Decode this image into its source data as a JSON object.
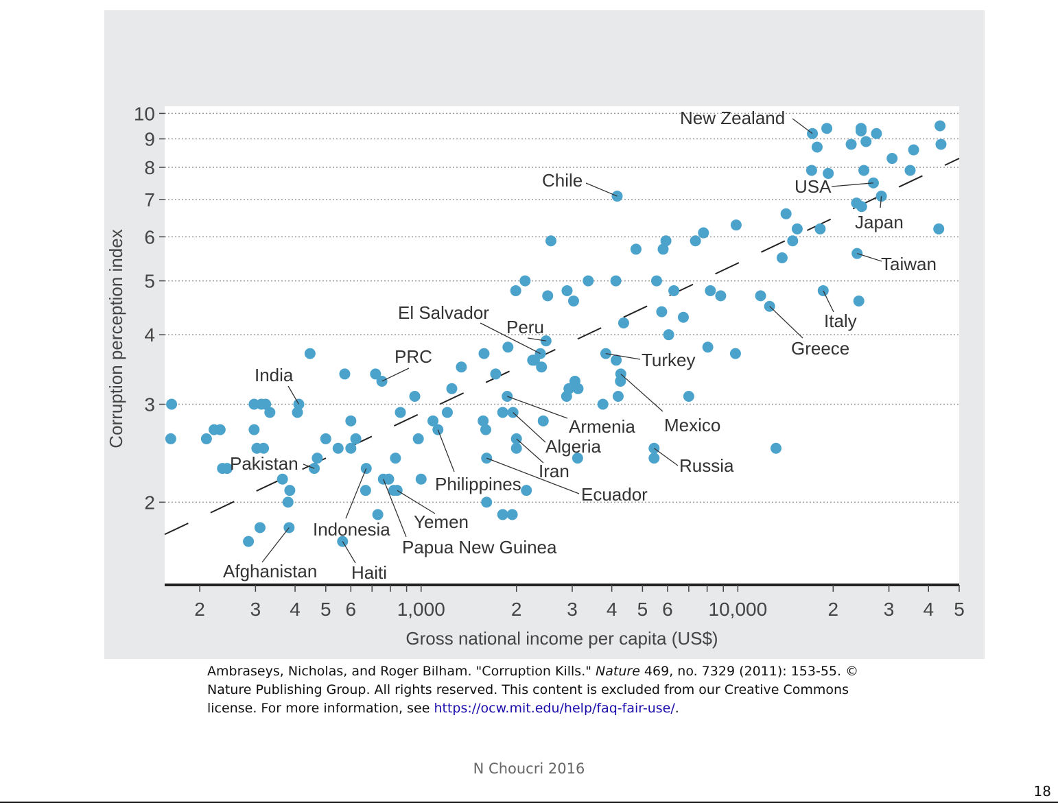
{
  "colors": {
    "point": "#4ba3cc",
    "panel": "#e8e9ea",
    "text": "#333333",
    "grid": "#999999"
  },
  "chart_data": {
    "type": "scatter",
    "xlabel": "Gross national income per capita (US$)",
    "ylabel": "Corruption perception index",
    "x_scale": "log",
    "y_scale": "log",
    "xlim": [
      155,
      50000
    ],
    "ylim": [
      1.42,
      10.3
    ],
    "grid": "horizontal dotted",
    "x_ticks": [
      {
        "v": 200,
        "label": "2"
      },
      {
        "v": 300,
        "label": "3"
      },
      {
        "v": 400,
        "label": "4"
      },
      {
        "v": 500,
        "label": "5"
      },
      {
        "v": 600,
        "label": "6"
      },
      {
        "v": 1000,
        "label": "1,000"
      },
      {
        "v": 2000,
        "label": "2"
      },
      {
        "v": 3000,
        "label": "3"
      },
      {
        "v": 4000,
        "label": "4"
      },
      {
        "v": 5000,
        "label": "5"
      },
      {
        "v": 6000,
        "label": "6"
      },
      {
        "v": 10000,
        "label": "10,000"
      },
      {
        "v": 20000,
        "label": "2"
      },
      {
        "v": 30000,
        "label": "3"
      },
      {
        "v": 40000,
        "label": "4"
      },
      {
        "v": 50000,
        "label": "5"
      }
    ],
    "y_ticks": [
      {
        "v": 2,
        "label": "2"
      },
      {
        "v": 3,
        "label": "3"
      },
      {
        "v": 4,
        "label": "4"
      },
      {
        "v": 5,
        "label": "5"
      },
      {
        "v": 6,
        "label": "6"
      },
      {
        "v": 7,
        "label": "7"
      },
      {
        "v": 8,
        "label": "8"
      },
      {
        "v": 9,
        "label": "9"
      },
      {
        "v": 10,
        "label": "10"
      }
    ],
    "trend_line": {
      "style": "dashed",
      "from": [
        155,
        1.75
      ],
      "to": [
        50000,
        8.3
      ]
    },
    "points": [
      [
        162,
        2.6
      ],
      [
        163,
        3.0
      ],
      [
        210,
        2.6
      ],
      [
        222,
        2.7
      ],
      [
        232,
        2.7
      ],
      [
        236,
        2.3
      ],
      [
        244,
        2.3
      ],
      [
        285,
        1.7
      ],
      [
        297,
        2.7
      ],
      [
        297,
        3.0
      ],
      [
        303,
        2.5
      ],
      [
        310,
        1.8
      ],
      [
        313,
        3.0
      ],
      [
        318,
        2.5
      ],
      [
        323,
        3.0
      ],
      [
        333,
        2.9
      ],
      [
        365,
        2.2
      ],
      [
        380,
        2.0
      ],
      [
        383,
        1.8
      ],
      [
        385,
        2.1
      ],
      [
        407,
        2.9
      ],
      [
        411,
        3.0
      ],
      [
        446,
        3.7
      ],
      [
        460,
        2.3
      ],
      [
        470,
        2.4
      ],
      [
        500,
        2.6
      ],
      [
        547,
        2.5
      ],
      [
        565,
        1.7
      ],
      [
        574,
        3.4
      ],
      [
        600,
        2.8
      ],
      [
        600,
        2.5
      ],
      [
        622,
        2.6
      ],
      [
        668,
        2.1
      ],
      [
        671,
        2.3
      ],
      [
        718,
        3.4
      ],
      [
        730,
        1.9
      ],
      [
        752,
        3.3
      ],
      [
        760,
        2.2
      ],
      [
        790,
        2.2
      ],
      [
        820,
        2.1
      ],
      [
        830,
        2.4
      ],
      [
        840,
        2.1
      ],
      [
        860,
        2.9
      ],
      [
        955,
        3.1
      ],
      [
        980,
        2.6
      ],
      [
        1000,
        2.2
      ],
      [
        1090,
        2.8
      ],
      [
        1130,
        2.7
      ],
      [
        1210,
        2.9
      ],
      [
        1250,
        3.2
      ],
      [
        1340,
        3.5
      ],
      [
        1570,
        2.8
      ],
      [
        1580,
        3.7
      ],
      [
        1600,
        2.7
      ],
      [
        1610,
        2.0
      ],
      [
        1610,
        2.4
      ],
      [
        1720,
        3.4
      ],
      [
        1810,
        1.9
      ],
      [
        1810,
        2.9
      ],
      [
        1870,
        3.1
      ],
      [
        1880,
        3.8
      ],
      [
        1940,
        1.9
      ],
      [
        1950,
        2.9
      ],
      [
        1990,
        4.8
      ],
      [
        2000,
        2.5
      ],
      [
        2000,
        2.6
      ],
      [
        2130,
        5.0
      ],
      [
        2150,
        2.1
      ],
      [
        2250,
        3.6
      ],
      [
        2280,
        3.6
      ],
      [
        2380,
        3.7
      ],
      [
        2400,
        3.5
      ],
      [
        2430,
        2.8
      ],
      [
        2480,
        3.9
      ],
      [
        2510,
        4.7
      ],
      [
        2570,
        5.9
      ],
      [
        2880,
        3.1
      ],
      [
        2890,
        4.8
      ],
      [
        2930,
        3.2
      ],
      [
        3030,
        4.6
      ],
      [
        3060,
        3.3
      ],
      [
        3120,
        2.4
      ],
      [
        3130,
        3.2
      ],
      [
        3370,
        5.0
      ],
      [
        3750,
        3.0
      ],
      [
        3830,
        3.7
      ],
      [
        4120,
        5.0
      ],
      [
        4130,
        3.6
      ],
      [
        4160,
        7.1
      ],
      [
        4190,
        3.1
      ],
      [
        4260,
        3.3
      ],
      [
        4270,
        3.4
      ],
      [
        4360,
        4.2
      ],
      [
        4770,
        5.7
      ],
      [
        5440,
        2.5
      ],
      [
        5440,
        2.4
      ],
      [
        5540,
        5.0
      ],
      [
        5750,
        4.4
      ],
      [
        5810,
        5.7
      ],
      [
        5930,
        5.9
      ],
      [
        6050,
        4.0
      ],
      [
        6280,
        4.8
      ],
      [
        6730,
        4.3
      ],
      [
        7000,
        3.1
      ],
      [
        7350,
        5.9
      ],
      [
        7790,
        6.1
      ],
      [
        8040,
        3.8
      ],
      [
        8190,
        4.8
      ],
      [
        8830,
        4.7
      ],
      [
        9830,
        3.7
      ],
      [
        9880,
        6.3
      ],
      [
        11800,
        4.7
      ],
      [
        12600,
        4.5
      ],
      [
        13200,
        2.5
      ],
      [
        13800,
        5.5
      ],
      [
        14200,
        6.6
      ],
      [
        14900,
        5.9
      ],
      [
        15400,
        6.2
      ],
      [
        17100,
        7.9
      ],
      [
        17200,
        9.2
      ],
      [
        17800,
        8.7
      ],
      [
        18200,
        6.2
      ],
      [
        18600,
        4.8
      ],
      [
        19100,
        9.4
      ],
      [
        19300,
        7.8
      ],
      [
        22800,
        8.8
      ],
      [
        23700,
        6.9
      ],
      [
        23800,
        5.6
      ],
      [
        24100,
        4.6
      ],
      [
        24500,
        9.3
      ],
      [
        24500,
        9.4
      ],
      [
        24600,
        6.8
      ],
      [
        25000,
        7.9
      ],
      [
        25400,
        8.9
      ],
      [
        26800,
        7.5
      ],
      [
        27400,
        9.2
      ],
      [
        28400,
        7.1
      ],
      [
        30700,
        8.3
      ],
      [
        35000,
        7.9
      ],
      [
        35900,
        8.6
      ],
      [
        43100,
        6.2
      ],
      [
        43500,
        9.5
      ],
      [
        43800,
        8.8
      ]
    ],
    "annotations": [
      {
        "text": "New Zealand",
        "at": [
          17200,
          9.2
        ]
      },
      {
        "text": "USA",
        "at": [
          26800,
          7.5
        ]
      },
      {
        "text": "Japan",
        "at": [
          28400,
          7.1
        ]
      },
      {
        "text": "Taiwan",
        "at": [
          23800,
          5.6
        ]
      },
      {
        "text": "Italy",
        "at": [
          18600,
          4.8
        ]
      },
      {
        "text": "Greece",
        "at": [
          12600,
          4.5
        ]
      },
      {
        "text": "Chile",
        "at": [
          4160,
          7.1
        ]
      },
      {
        "text": "El Salvador",
        "at": [
          2380,
          3.7
        ]
      },
      {
        "text": "Peru",
        "at": [
          2480,
          3.9
        ]
      },
      {
        "text": "Turkey",
        "at": [
          3830,
          3.7
        ]
      },
      {
        "text": "PRC",
        "at": [
          752,
          3.3
        ]
      },
      {
        "text": "India",
        "at": [
          411,
          3.0
        ]
      },
      {
        "text": "Mexico",
        "at": [
          4270,
          3.4
        ]
      },
      {
        "text": "Armenia",
        "at": [
          1870,
          3.1
        ]
      },
      {
        "text": "Algeria",
        "at": [
          1950,
          2.9
        ]
      },
      {
        "text": "Iran",
        "at": [
          2000,
          2.6
        ]
      },
      {
        "text": "Russia",
        "at": [
          5440,
          2.5
        ]
      },
      {
        "text": "Ecuador",
        "at": [
          1610,
          2.4
        ]
      },
      {
        "text": "Pakistan",
        "at": [
          460,
          2.3
        ]
      },
      {
        "text": "Philippines",
        "at": [
          1130,
          2.7
        ]
      },
      {
        "text": "Yemen",
        "at": [
          840,
          2.1
        ]
      },
      {
        "text": "Indonesia",
        "at": [
          671,
          2.3
        ]
      },
      {
        "text": "Papua New Guinea",
        "at": [
          760,
          2.2
        ]
      },
      {
        "text": "Afghanistan",
        "at": [
          383,
          1.8
        ]
      },
      {
        "text": "Haiti",
        "at": [
          565,
          1.7
        ]
      }
    ]
  },
  "caption": {
    "part1": "Ambraseys, Nicholas, and Roger Bilham. \"Corruption Kills.\" ",
    "journal": "Nature",
    "part2": " 469, no. 7329 (2011): 153-55. © Nature Publishing Group. All rights reserved. This content is excluded from our Creative Commons license. For more information, see ",
    "link": "https://ocw.mit.edu/help/faq-fair-use/",
    "part3": "."
  },
  "footer": {
    "credit": "N Choucri 2016",
    "page_number": "18"
  }
}
